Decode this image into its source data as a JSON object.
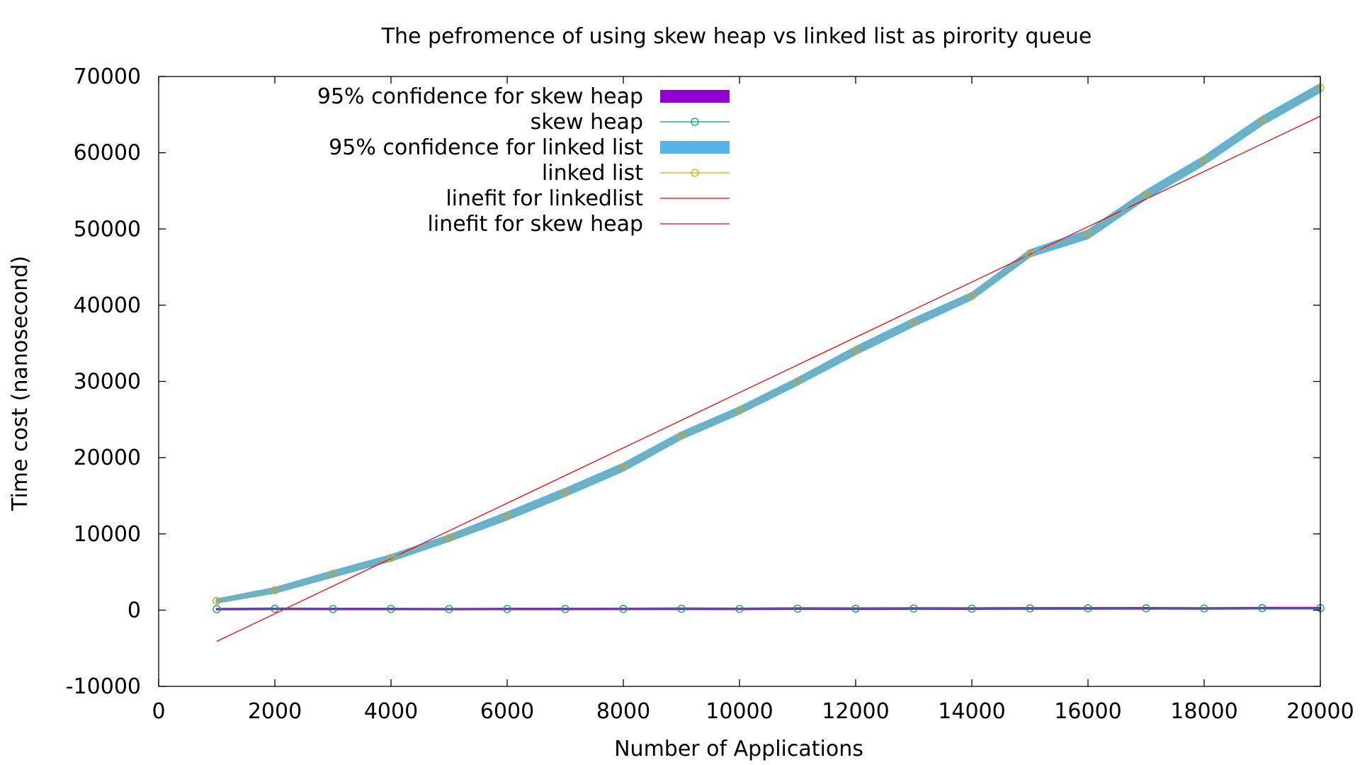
{
  "chart_data": {
    "type": "line",
    "title": "The pefromence of using skew heap vs linked list as pirority queue",
    "xlabel": "Number of Applications",
    "ylabel": "Time cost (nanosecond)",
    "xlim": [
      0,
      20000
    ],
    "ylim": [
      -10000,
      70000
    ],
    "x_ticks": [
      "0",
      "2000",
      "4000",
      "6000",
      "8000",
      "10000",
      "12000",
      "14000",
      "16000",
      "18000",
      "20000"
    ],
    "y_ticks": [
      "-10000",
      "0",
      "10000",
      "20000",
      "30000",
      "40000",
      "50000",
      "60000",
      "70000"
    ],
    "grid": false,
    "legend_position": "top-left",
    "x": [
      1000,
      2000,
      3000,
      4000,
      5000,
      6000,
      7000,
      8000,
      9000,
      10000,
      11000,
      12000,
      13000,
      14000,
      15000,
      16000,
      17000,
      18000,
      19000,
      20000
    ],
    "series": [
      {
        "name": "95% confidence for skew heap",
        "kind": "band",
        "color": "#9400d3",
        "lower": [
          110,
          150,
          130,
          130,
          120,
          130,
          130,
          140,
          150,
          140,
          170,
          160,
          180,
          170,
          200,
          200,
          210,
          190,
          230,
          230
        ],
        "upper": [
          150,
          200,
          170,
          170,
          160,
          170,
          170,
          180,
          210,
          180,
          230,
          220,
          240,
          230,
          260,
          260,
          270,
          250,
          290,
          290
        ]
      },
      {
        "name": "skew heap",
        "kind": "line-points",
        "color": "#009e73",
        "values": [
          130,
          180,
          150,
          150,
          140,
          150,
          150,
          160,
          180,
          160,
          200,
          190,
          210,
          200,
          230,
          230,
          240,
          220,
          260,
          260
        ]
      },
      {
        "name": "95% confidence for linked list",
        "kind": "band",
        "color": "#56b4e9",
        "lower": [
          1000,
          2300,
          4400,
          6500,
          9100,
          11900,
          15000,
          18300,
          22500,
          25800,
          29600,
          33600,
          37300,
          40800,
          46400,
          48800,
          54000,
          58500,
          63700,
          68000
        ],
        "upper": [
          1400,
          2900,
          5100,
          7200,
          9800,
          12800,
          15900,
          19200,
          23300,
          26600,
          30400,
          34500,
          38200,
          41600,
          47200,
          49800,
          55000,
          59500,
          64700,
          69000
        ]
      },
      {
        "name": "linked list",
        "kind": "line-points",
        "color": "#e69f00",
        "values": [
          1200,
          2600,
          4750,
          6850,
          9450,
          12350,
          15450,
          18750,
          22900,
          26200,
          30000,
          34050,
          37750,
          41200,
          46800,
          49300,
          54500,
          59000,
          64200,
          68500
        ]
      },
      {
        "name": "linefit for linkedlist",
        "kind": "fit-line",
        "color": "#ff0000",
        "x": [
          1000,
          20000
        ],
        "values": [
          -4100,
          64800
        ]
      },
      {
        "name": "linefit for skew heap",
        "kind": "fit-line",
        "color": "#ff0000",
        "x": [
          1000,
          20000
        ],
        "values": [
          120,
          270
        ]
      }
    ]
  }
}
